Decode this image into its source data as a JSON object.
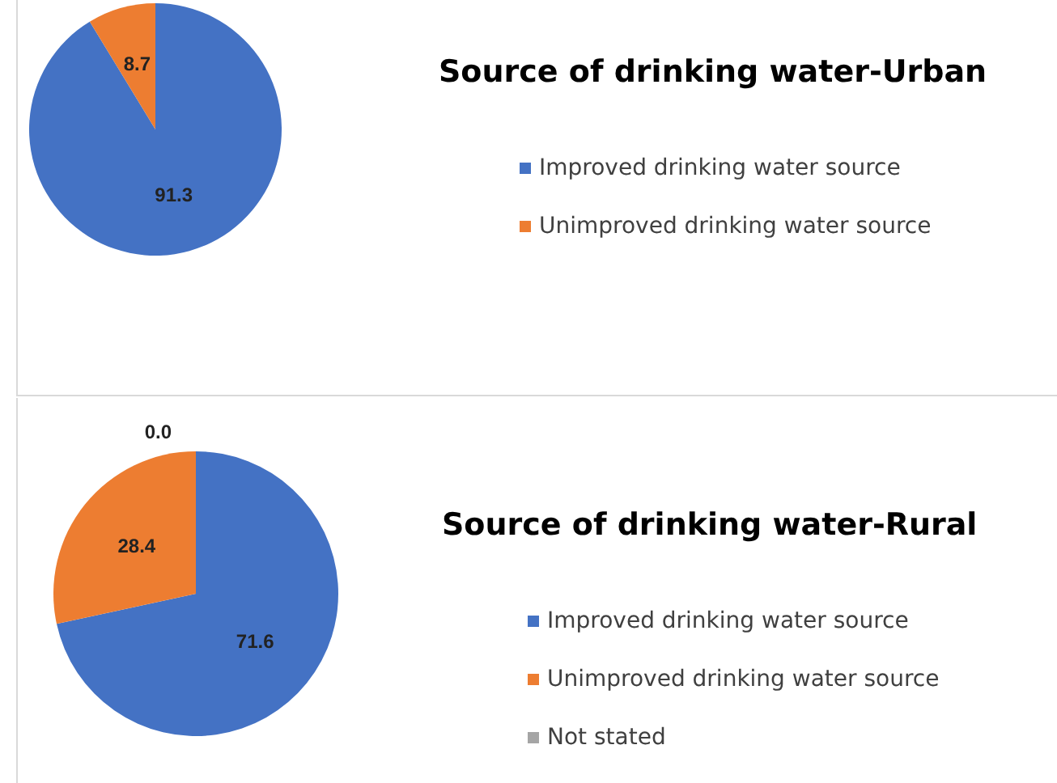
{
  "chart_data": [
    {
      "type": "pie",
      "title": "Source of drinking water-Urban",
      "categories": [
        "Improved drinking water source",
        "Unimproved drinking water source"
      ],
      "values": [
        91.3,
        8.7
      ],
      "colors": [
        "#4472c4",
        "#ed7d31"
      ],
      "legend": "right",
      "value_labels": [
        "91.3",
        "8.7"
      ]
    },
    {
      "type": "pie",
      "title": "Source of drinking water-Rural",
      "categories": [
        "Improved drinking water source",
        "Unimproved drinking water source",
        "Not stated"
      ],
      "values": [
        71.6,
        28.4,
        0.0
      ],
      "colors": [
        "#4472c4",
        "#ed7d31",
        "#a5a5a5"
      ],
      "legend": "right",
      "value_labels": [
        "71.6",
        "28.4",
        "0.0"
      ]
    }
  ]
}
